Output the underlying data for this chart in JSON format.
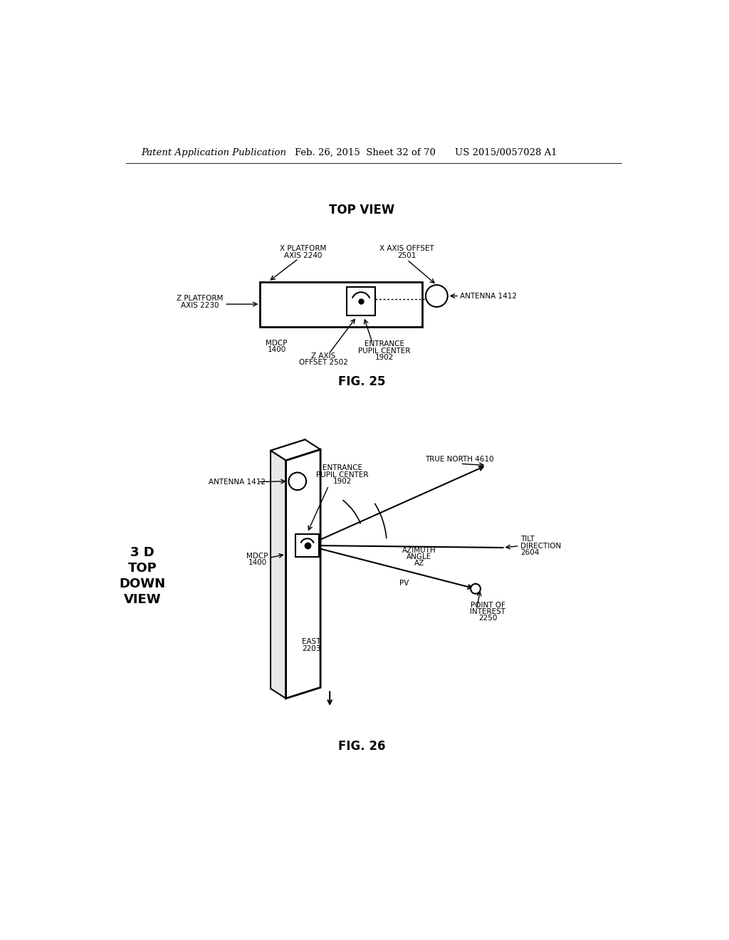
{
  "bg_color": "#ffffff",
  "header_text1": "Patent Application Publication",
  "header_text2": "Feb. 26, 2015  Sheet 32 of 70",
  "header_text3": "US 2015/0057028 A1",
  "fig25_title": "TOP VIEW",
  "fig25_label": "FIG. 25",
  "fig26_label": "FIG. 26",
  "fig26_3d_label": "3 D\nTOP\nDOWN\nVIEW"
}
